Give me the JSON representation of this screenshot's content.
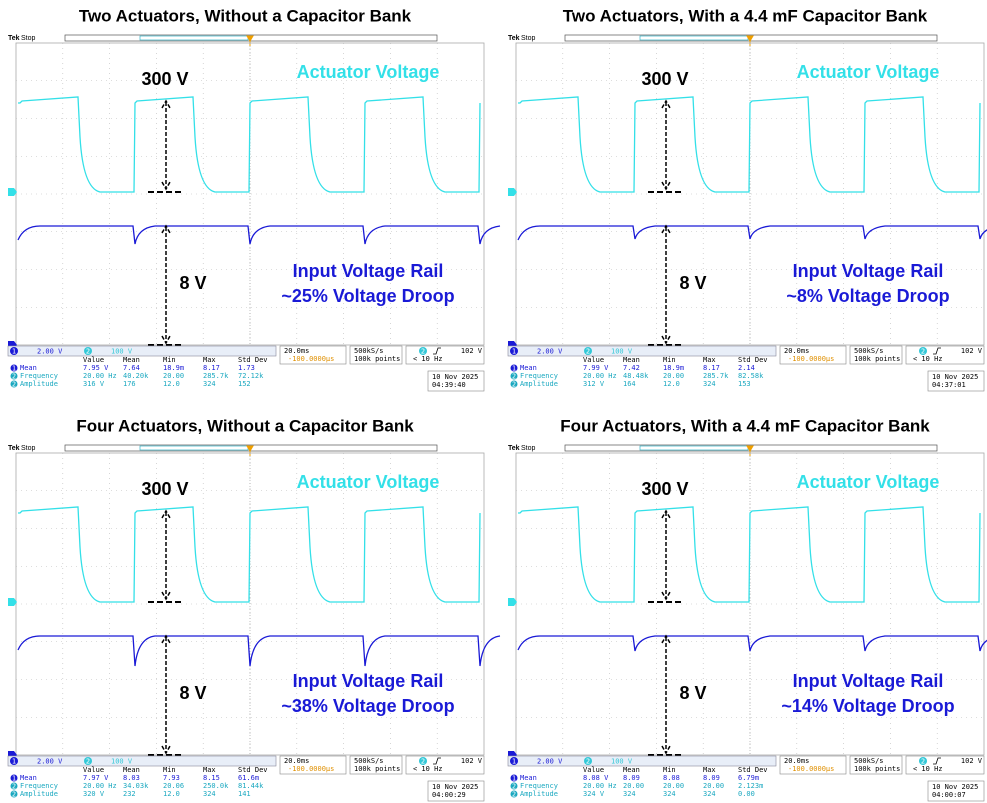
{
  "panels": [
    {
      "title": "Two Actuators, Without a Capacitor Bank",
      "brand": "Tek",
      "status": "Stop",
      "actuator_amplitude": "300 V",
      "actuator_label": "Actuator Voltage",
      "rail_amplitude": "8 V",
      "rail_label": "Input Voltage Rail",
      "droop_label": "~25% Voltage Droop",
      "channels": [
        {
          "id": "1",
          "scale": "2.00 V"
        },
        {
          "id": "2",
          "scale": "100 V"
        }
      ],
      "timebase": "20.0ms",
      "trigger_position": "-100.0000µs",
      "sample_rate": "500kS/s",
      "record_length": "100k points",
      "trigger_channel": "2",
      "trigger_level": "102 V",
      "trigger_frequency": "< 10 Hz",
      "measurements": {
        "headers": [
          "Value",
          "Mean",
          "Min",
          "Max",
          "Std Dev"
        ],
        "rows": [
          {
            "channel": "1",
            "label": "Mean",
            "cells": [
              "7.95 V",
              "7.64",
              "18.9m",
              "8.17",
              "1.73"
            ]
          },
          {
            "channel": "2",
            "label": "Frequency",
            "cells": [
              "20.00 Hz",
              "40.20k",
              "20.00",
              "285.7k",
              "72.12k"
            ]
          },
          {
            "channel": "2",
            "label": "Amplitude",
            "cells": [
              "316 V",
              "176",
              "12.0",
              "324",
              "152"
            ]
          }
        ]
      },
      "date": "10 Nov 2025",
      "time": "04:39:40"
    },
    {
      "title": "Two Actuators, With a 4.4 mF Capacitor Bank",
      "brand": "Tek",
      "status": "Stop",
      "actuator_amplitude": "300 V",
      "actuator_label": "Actuator Voltage",
      "rail_amplitude": "8 V",
      "rail_label": "Input Voltage Rail",
      "droop_label": "~8% Voltage Droop",
      "channels": [
        {
          "id": "1",
          "scale": "2.00 V"
        },
        {
          "id": "2",
          "scale": "100 V"
        }
      ],
      "timebase": "20.0ms",
      "trigger_position": "-100.0000µs",
      "sample_rate": "500kS/s",
      "record_length": "100k points",
      "trigger_channel": "2",
      "trigger_level": "102 V",
      "trigger_frequency": "< 10 Hz",
      "measurements": {
        "headers": [
          "Value",
          "Mean",
          "Min",
          "Max",
          "Std Dev"
        ],
        "rows": [
          {
            "channel": "1",
            "label": "Mean",
            "cells": [
              "7.99 V",
              "7.42",
              "18.9m",
              "8.17",
              "2.14"
            ]
          },
          {
            "channel": "2",
            "label": "Frequency",
            "cells": [
              "20.00 Hz",
              "48.48k",
              "20.00",
              "285.7k",
              "82.58k"
            ]
          },
          {
            "channel": "2",
            "label": "Amplitude",
            "cells": [
              "312 V",
              "164",
              "12.0",
              "324",
              "153"
            ]
          }
        ]
      },
      "date": "10 Nov 2025",
      "time": "04:37:01"
    },
    {
      "title": "Four Actuators, Without a Capacitor Bank",
      "brand": "Tek",
      "status": "Stop",
      "actuator_amplitude": "300 V",
      "actuator_label": "Actuator Voltage",
      "rail_amplitude": "8 V",
      "rail_label": "Input Voltage Rail",
      "droop_label": "~38% Voltage Droop",
      "channels": [
        {
          "id": "1",
          "scale": "2.00 V"
        },
        {
          "id": "2",
          "scale": "100 V"
        }
      ],
      "timebase": "20.0ms",
      "trigger_position": "-100.0000µs",
      "sample_rate": "500kS/s",
      "record_length": "100k points",
      "trigger_channel": "2",
      "trigger_level": "102 V",
      "trigger_frequency": "< 10 Hz",
      "measurements": {
        "headers": [
          "Value",
          "Mean",
          "Min",
          "Max",
          "Std Dev"
        ],
        "rows": [
          {
            "channel": "1",
            "label": "Mean",
            "cells": [
              "7.97 V",
              "8.03",
              "7.93",
              "8.15",
              "61.6m"
            ]
          },
          {
            "channel": "2",
            "label": "Frequency",
            "cells": [
              "20.00 Hz",
              "34.03k",
              "20.06",
              "250.0k",
              "81.44k"
            ]
          },
          {
            "channel": "2",
            "label": "Amplitude",
            "cells": [
              "320 V",
              "232",
              "12.0",
              "324",
              "141"
            ]
          }
        ]
      },
      "date": "10 Nov 2025",
      "time": "04:00:29"
    },
    {
      "title": "Four Actuators, With a 4.4 mF Capacitor Bank",
      "brand": "Tek",
      "status": "Stop",
      "actuator_amplitude": "300 V",
      "actuator_label": "Actuator Voltage",
      "rail_amplitude": "8 V",
      "rail_label": "Input Voltage Rail",
      "droop_label": "~14% Voltage Droop",
      "channels": [
        {
          "id": "1",
          "scale": "2.00 V"
        },
        {
          "id": "2",
          "scale": "100 V"
        }
      ],
      "timebase": "20.0ms",
      "trigger_position": "-100.0000µs",
      "sample_rate": "500kS/s",
      "record_length": "100k points",
      "trigger_channel": "2",
      "trigger_level": "102 V",
      "trigger_frequency": "< 10 Hz",
      "measurements": {
        "headers": [
          "Value",
          "Mean",
          "Min",
          "Max",
          "Std Dev"
        ],
        "rows": [
          {
            "channel": "1",
            "label": "Mean",
            "cells": [
              "8.08 V",
              "8.09",
              "8.08",
              "8.09",
              "6.79m"
            ]
          },
          {
            "channel": "2",
            "label": "Frequency",
            "cells": [
              "20.00 Hz",
              "20.00",
              "20.00",
              "20.00",
              "2.123m"
            ]
          },
          {
            "channel": "2",
            "label": "Amplitude",
            "cells": [
              "324 V",
              "324",
              "324",
              "324",
              "0.00"
            ]
          }
        ]
      },
      "date": "10 Nov 2025",
      "time": "04:00:07"
    }
  ]
}
